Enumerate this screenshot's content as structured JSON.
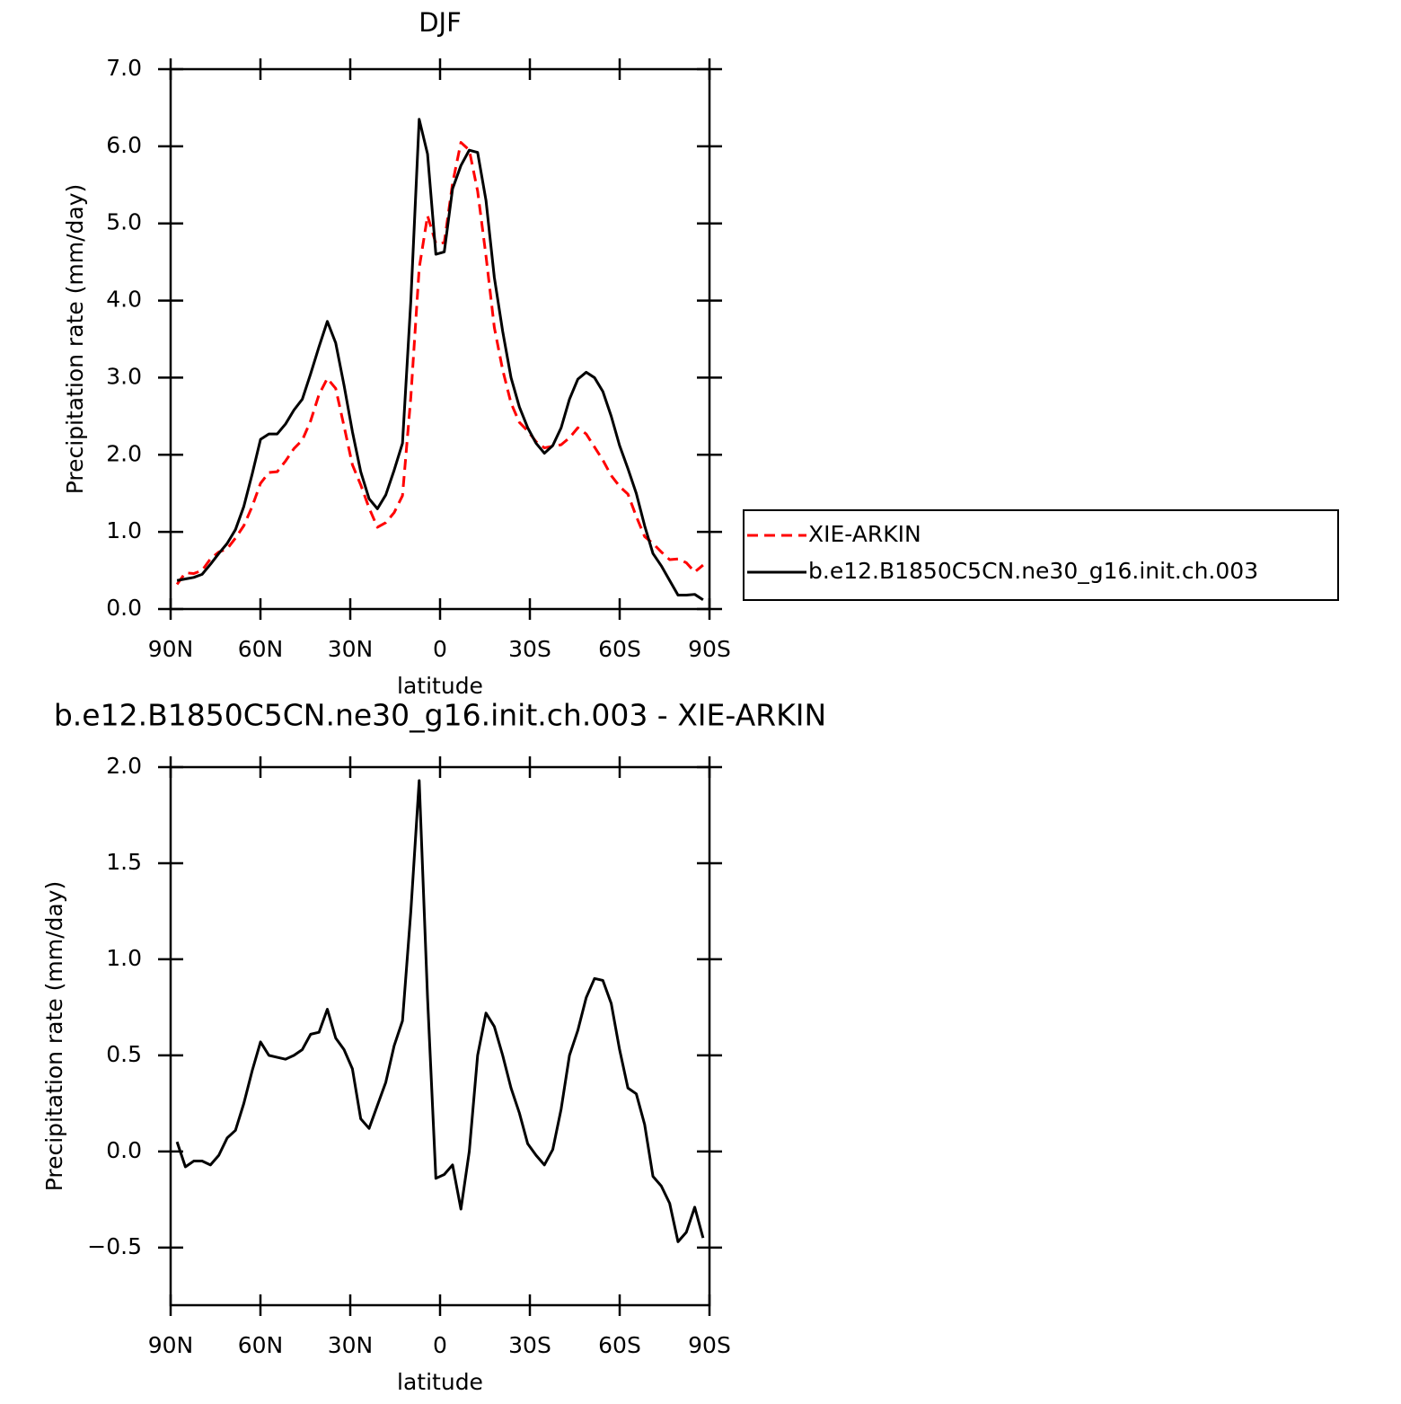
{
  "chart_data": [
    {
      "type": "line",
      "title": "DJF",
      "xlabel": "latitude",
      "ylabel": "Precipitation rate (mm/day)",
      "x": [
        87.86,
        85.07,
        82.28,
        79.49,
        76.7,
        73.91,
        71.12,
        68.34,
        65.55,
        62.76,
        59.97,
        57.18,
        54.39,
        51.6,
        48.81,
        46.02,
        43.23,
        40.44,
        37.65,
        34.86,
        32.07,
        29.28,
        26.5,
        23.71,
        20.92,
        18.13,
        15.34,
        12.55,
        9.76,
        6.97,
        4.18,
        1.4,
        -1.4,
        -4.18,
        -6.97,
        -9.76,
        -12.55,
        -15.34,
        -18.13,
        -20.92,
        -23.71,
        -26.5,
        -29.28,
        -32.07,
        -34.86,
        -37.65,
        -40.44,
        -43.23,
        -46.02,
        -48.81,
        -51.6,
        -54.39,
        -57.18,
        -59.97,
        -62.76,
        -65.55,
        -68.34,
        -71.12,
        -73.91,
        -76.7,
        -79.49,
        -82.28,
        -85.07,
        -87.86
      ],
      "series": [
        {
          "name": "XIE-ARKIN",
          "color": "#ff0000",
          "dashed": true,
          "values": [
            0.32,
            0.47,
            0.46,
            0.5,
            0.65,
            0.74,
            0.78,
            0.92,
            1.08,
            1.33,
            1.63,
            1.77,
            1.78,
            1.92,
            2.08,
            2.19,
            2.44,
            2.78,
            2.99,
            2.86,
            2.37,
            1.87,
            1.61,
            1.31,
            1.06,
            1.12,
            1.25,
            1.47,
            2.75,
            4.42,
            5.1,
            4.74,
            4.75,
            5.52,
            6.05,
            5.95,
            5.42,
            4.58,
            3.65,
            3.1,
            2.67,
            2.42,
            2.31,
            2.17,
            2.09,
            2.11,
            2.13,
            2.22,
            2.35,
            2.27,
            2.1,
            1.93,
            1.73,
            1.59,
            1.49,
            1.2,
            0.94,
            0.85,
            0.74,
            0.64,
            0.65,
            0.6,
            0.48,
            0.57
          ]
        },
        {
          "name": "b.e12.B1850C5CN.ne30_g16.init.ch.003",
          "color": "#000000",
          "dashed": false,
          "values": [
            0.37,
            0.39,
            0.41,
            0.45,
            0.58,
            0.72,
            0.85,
            1.03,
            1.33,
            1.75,
            2.2,
            2.27,
            2.27,
            2.4,
            2.58,
            2.72,
            3.05,
            3.4,
            3.73,
            3.45,
            2.9,
            2.3,
            1.78,
            1.43,
            1.3,
            1.48,
            1.8,
            2.15,
            4.0,
            6.35,
            5.9,
            4.6,
            4.63,
            5.45,
            5.75,
            5.95,
            5.92,
            5.3,
            4.3,
            3.6,
            3.0,
            2.62,
            2.35,
            2.15,
            2.02,
            2.12,
            2.35,
            2.72,
            2.98,
            3.07,
            3.0,
            2.82,
            2.5,
            2.12,
            1.82,
            1.5,
            1.08,
            0.72,
            0.56,
            0.37,
            0.18,
            0.18,
            0.19,
            0.12
          ]
        }
      ],
      "xlim": [
        90,
        -90
      ],
      "xticks": [
        {
          "value": 90,
          "label": "90N"
        },
        {
          "value": 60,
          "label": "60N"
        },
        {
          "value": 30,
          "label": "30N"
        },
        0,
        {
          "value": -30,
          "label": "30S"
        },
        {
          "value": -60,
          "label": "60S"
        },
        {
          "value": -90,
          "label": "90S"
        }
      ],
      "ylim": [
        0,
        7
      ],
      "yticks": [
        {
          "value": 0,
          "label": "0.0"
        },
        {
          "value": 1,
          "label": "1.0"
        },
        {
          "value": 2,
          "label": "2.0"
        },
        {
          "value": 3,
          "label": "3.0"
        },
        {
          "value": 4,
          "label": "4.0"
        },
        {
          "value": 5,
          "label": "5.0"
        },
        {
          "value": 6,
          "label": "6.0"
        },
        {
          "value": 7,
          "label": "7.0"
        }
      ],
      "legend": "right"
    },
    {
      "type": "line",
      "title": "b.e12.B1850C5CN.ne30_g16.init.ch.003 - XIE-ARKIN",
      "xlabel": "latitude",
      "ylabel": "Precipitation rate (mm/day)",
      "x": [
        87.86,
        85.07,
        82.28,
        79.49,
        76.7,
        73.91,
        71.12,
        68.34,
        65.55,
        62.76,
        59.97,
        57.18,
        54.39,
        51.6,
        48.81,
        46.02,
        43.23,
        40.44,
        37.65,
        34.86,
        32.07,
        29.28,
        26.5,
        23.71,
        20.92,
        18.13,
        15.34,
        12.55,
        9.76,
        6.97,
        4.18,
        1.4,
        -1.4,
        -4.18,
        -6.97,
        -9.76,
        -12.55,
        -15.34,
        -18.13,
        -20.92,
        -23.71,
        -26.5,
        -29.28,
        -32.07,
        -34.86,
        -37.65,
        -40.44,
        -43.23,
        -46.02,
        -48.81,
        -51.6,
        -54.39,
        -57.18,
        -59.97,
        -62.76,
        -65.55,
        -68.34,
        -71.12,
        -73.91,
        -76.7,
        -79.49,
        -82.28,
        -85.07,
        -87.86
      ],
      "series": [
        {
          "color": "#000000",
          "dashed": false,
          "values": [
            0.05,
            -0.08,
            -0.05,
            -0.05,
            -0.07,
            -0.02,
            0.07,
            0.11,
            0.25,
            0.42,
            0.57,
            0.5,
            0.49,
            0.48,
            0.5,
            0.53,
            0.61,
            0.62,
            0.74,
            0.59,
            0.53,
            0.43,
            0.17,
            0.12,
            0.24,
            0.36,
            0.55,
            0.68,
            1.25,
            1.93,
            0.8,
            -0.14,
            -0.12,
            -0.07,
            -0.3,
            0.0,
            0.5,
            0.72,
            0.65,
            0.5,
            0.33,
            0.2,
            0.04,
            -0.02,
            -0.07,
            0.01,
            0.22,
            0.5,
            0.63,
            0.8,
            0.9,
            0.89,
            0.77,
            0.53,
            0.33,
            0.3,
            0.14,
            -0.13,
            -0.18,
            -0.27,
            -0.47,
            -0.42,
            -0.29,
            -0.45
          ]
        }
      ],
      "xlim": [
        90,
        -90
      ],
      "xticks": [
        {
          "value": 90,
          "label": "90N"
        },
        {
          "value": 60,
          "label": "60N"
        },
        {
          "value": 30,
          "label": "30N"
        },
        0,
        {
          "value": -30,
          "label": "30S"
        },
        {
          "value": -60,
          "label": "60S"
        },
        {
          "value": -90,
          "label": "90S"
        }
      ],
      "ylim": [
        -0.8,
        2
      ],
      "yticks": [
        {
          "value": -0.5,
          "label": "−0.5"
        },
        {
          "value": 0,
          "label": "0.0"
        },
        {
          "value": 0.5,
          "label": "0.5"
        },
        {
          "value": 1,
          "label": "1.0"
        },
        {
          "value": 1.5,
          "label": "1.5"
        },
        {
          "value": 2,
          "label": "2.0"
        }
      ]
    }
  ]
}
